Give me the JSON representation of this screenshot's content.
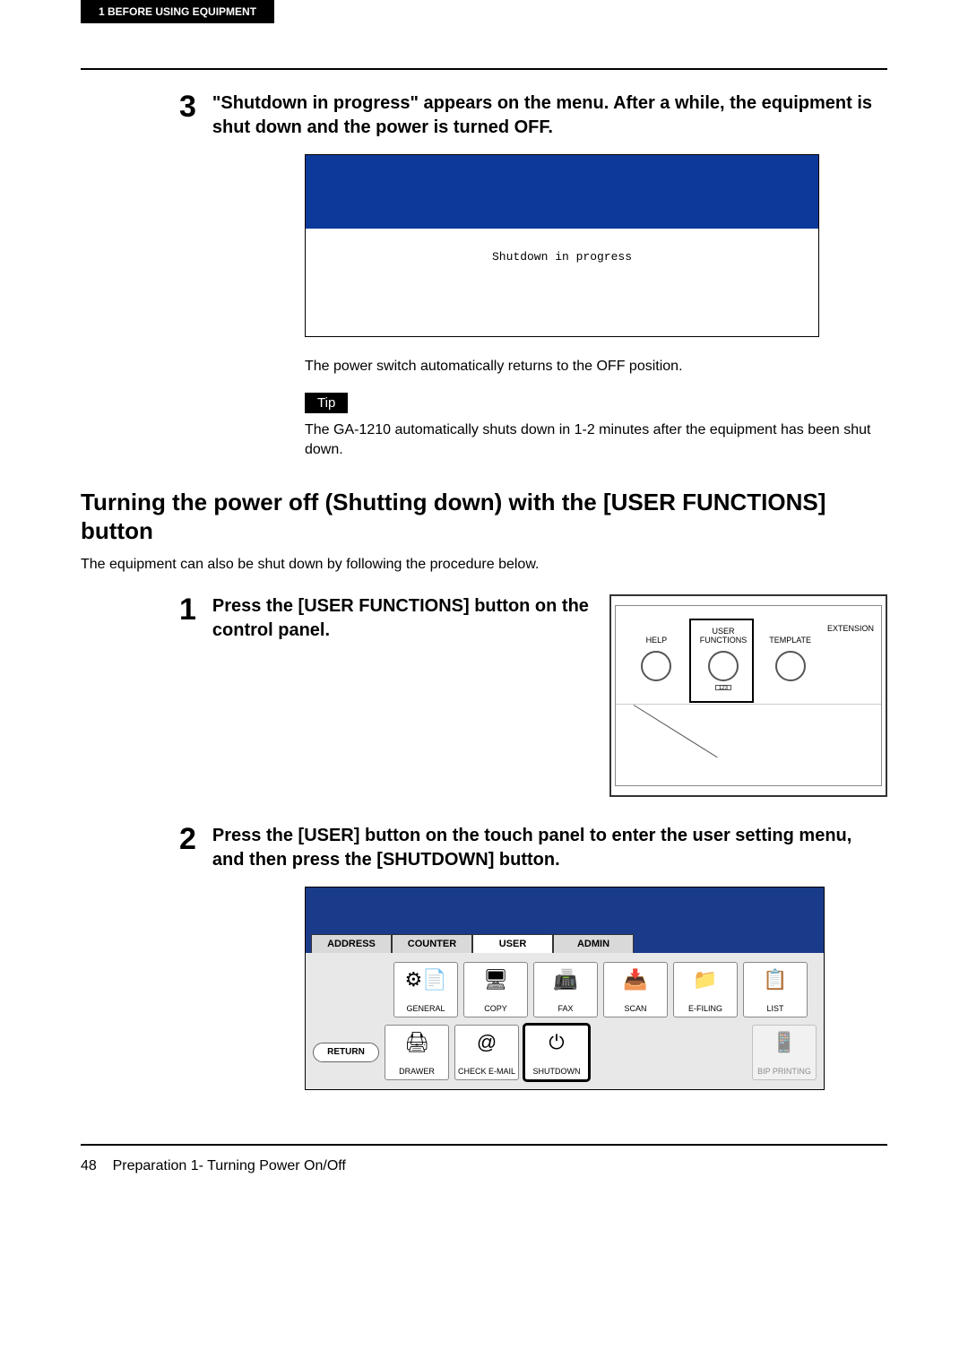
{
  "header_tab": "1   BEFORE USING EQUIPMENT",
  "step3": {
    "num": "3",
    "text": "\"Shutdown in progress\" appears on the menu. After a while, the equipment is shut down and the power is turned OFF."
  },
  "shutdown_screen": {
    "message": "Shutdown in progress",
    "header_color": "#0d3a9a",
    "bg_color": "#ffffff"
  },
  "power_note": "The power switch automatically returns to the OFF position.",
  "tip_label": "Tip",
  "tip_text": "The GA-1210 automatically shuts down in 1-2 minutes after the equipment has been shut down.",
  "section_heading": "Turning the power off (Shutting down) with the [USER FUNCTIONS] button",
  "section_intro": "The equipment can also be shut down by following the procedure below.",
  "step1": {
    "num": "1",
    "text": "Press the [USER FUNCTIONS] button on the control panel."
  },
  "control_panel": {
    "buttons": [
      {
        "label": "HELP"
      },
      {
        "label": "USER\nFUNCTIONS"
      },
      {
        "label": "TEMPLATE"
      }
    ],
    "extension_label": "EXTENSION"
  },
  "step2": {
    "num": "2",
    "text": "Press the [USER] button on the touch panel to enter the user setting menu, and then press the [SHUTDOWN] button."
  },
  "touch_panel": {
    "header_color": "#1a3a8a",
    "tabs": [
      "ADDRESS",
      "COUNTER",
      "USER",
      "ADMIN"
    ],
    "active_tab_index": 2,
    "row1": [
      {
        "label": "GENERAL",
        "glyph": "⚙📄"
      },
      {
        "label": "COPY",
        "glyph": "🖥"
      },
      {
        "label": "FAX",
        "glyph": "📠"
      },
      {
        "label": "SCAN",
        "glyph": "📥"
      },
      {
        "label": "E-FILING",
        "glyph": "📁"
      },
      {
        "label": "LIST",
        "glyph": "📋"
      }
    ],
    "row2": [
      {
        "label": "DRAWER",
        "glyph": "🖨"
      },
      {
        "label": "CHECK E-MAIL",
        "glyph": "@"
      },
      {
        "label": "SHUTDOWN",
        "glyph": "⏻",
        "highlight": true
      }
    ],
    "bip": {
      "label": "BIP PRINTING",
      "glyph": "📱",
      "disabled": true
    },
    "return_label": "RETURN"
  },
  "footer": {
    "page_num": "48",
    "text": "Preparation 1- Turning Power On/Off"
  }
}
